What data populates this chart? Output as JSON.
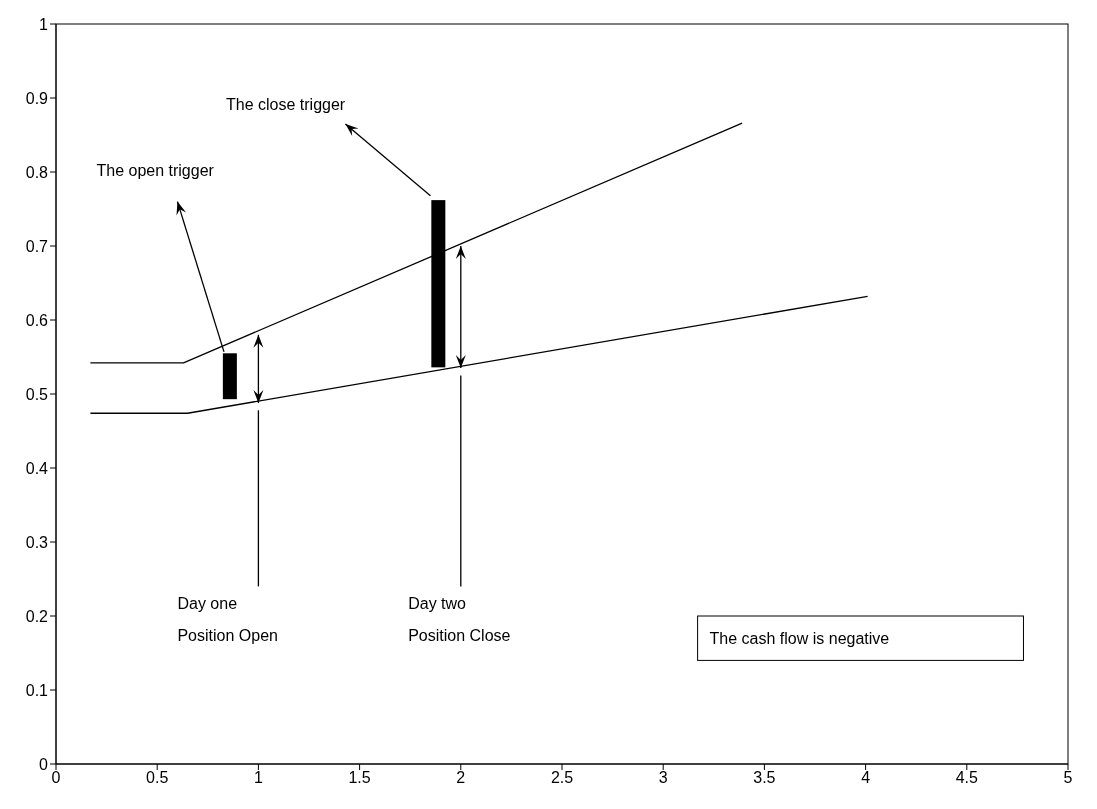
{
  "chart_data": {
    "type": "line",
    "series": [
      {
        "color": "#000000",
        "x": [
          0.17,
          0.63,
          3.39
        ],
        "values": [
          0.542,
          0.542,
          0.866
        ]
      },
      {
        "color": "#000000",
        "x": [
          0.17,
          0.65,
          4.01
        ],
        "values": [
          0.474,
          0.474,
          0.632
        ]
      },
      {
        "type": "bar",
        "color": "#000000",
        "x": [
          0.86,
          1.89
        ],
        "base": [
          0.493,
          0.536
        ],
        "values": [
          0.062,
          0.226
        ]
      }
    ],
    "xlim": [
      0,
      5
    ],
    "xticks": [
      0,
      0.5,
      1,
      1.5,
      2,
      2.5,
      3,
      3.5,
      4,
      4.5,
      5
    ],
    "ylim": [
      0,
      1
    ],
    "yticks": [
      0,
      0.1,
      0.2,
      0.3,
      0.4,
      0.5,
      0.6,
      0.7,
      0.8,
      0.9,
      1
    ],
    "marker": "none",
    "line_style": "solid",
    "annotations": [
      "The open trigger",
      "The close trigger",
      "Day one\nPosition Open",
      "Day two\nPosition Close",
      "The cash flow is negative"
    ]
  }
}
